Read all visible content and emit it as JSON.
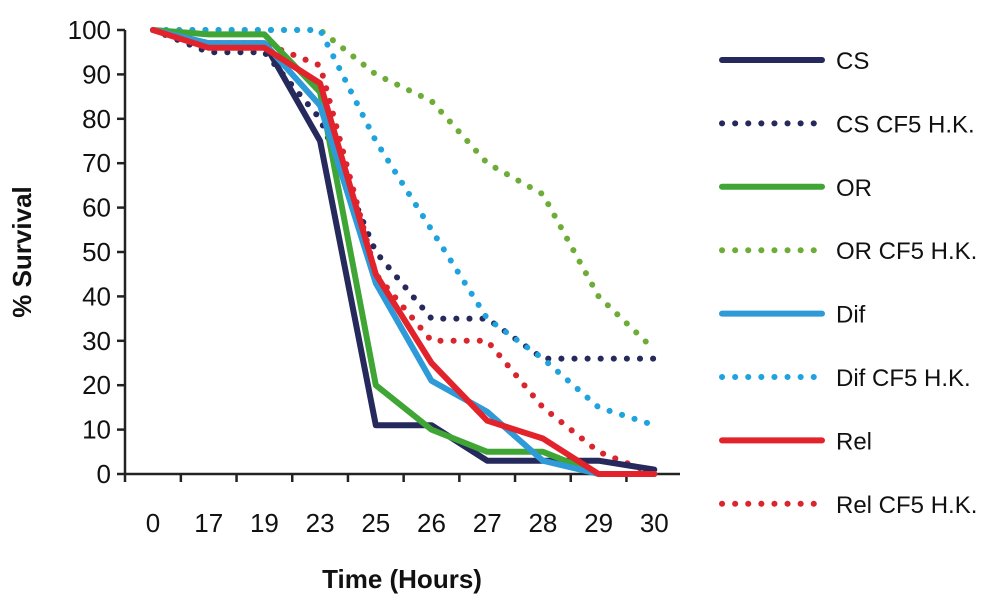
{
  "chart_data": {
    "type": "line",
    "title": "",
    "xlabel": "Time (Hours)",
    "ylabel": "% Survival",
    "categories": [
      "0",
      "17",
      "19",
      "23",
      "25",
      "26",
      "27",
      "28",
      "29",
      "30"
    ],
    "ylim": [
      0,
      100
    ],
    "yticks": [
      0,
      10,
      20,
      30,
      40,
      50,
      60,
      70,
      80,
      90,
      100
    ],
    "grid": false,
    "legend_position": "right",
    "series": [
      {
        "name": "CS",
        "color": "#25295b",
        "style": "solid",
        "values": [
          100,
          97,
          97,
          75,
          11,
          11,
          3,
          3,
          3,
          1
        ]
      },
      {
        "name": "CS CF5 H.K.",
        "color": "#25295b",
        "style": "dotted",
        "values": [
          100,
          95,
          95,
          80,
          50,
          35,
          35,
          26,
          26,
          26
        ]
      },
      {
        "name": "OR",
        "color": "#3fa535",
        "style": "solid",
        "values": [
          100,
          99,
          99,
          86,
          20,
          10,
          5,
          5,
          0,
          0
        ]
      },
      {
        "name": "OR CF5 H.K.",
        "color": "#6eac38",
        "style": "dotted",
        "values": [
          100,
          100,
          100,
          100,
          90,
          84,
          70,
          63,
          40,
          28
        ]
      },
      {
        "name": "Dif",
        "color": "#2f9ad8",
        "style": "solid",
        "values": [
          100,
          97,
          97,
          83,
          43,
          21,
          14,
          3,
          0,
          0
        ]
      },
      {
        "name": "Dif CF5 H.K.",
        "color": "#1fa3df",
        "style": "dotted",
        "values": [
          100,
          100,
          100,
          100,
          75,
          55,
          35,
          26,
          15,
          11
        ]
      },
      {
        "name": "Rel",
        "color": "#e3232b",
        "style": "solid",
        "values": [
          100,
          96,
          96,
          88,
          45,
          25,
          12,
          8,
          0,
          0
        ]
      },
      {
        "name": "Rel CF5 H.K.",
        "color": "#d9252e",
        "style": "dotted",
        "values": [
          100,
          97,
          97,
          92,
          45,
          30,
          30,
          15,
          5,
          0
        ]
      }
    ]
  }
}
